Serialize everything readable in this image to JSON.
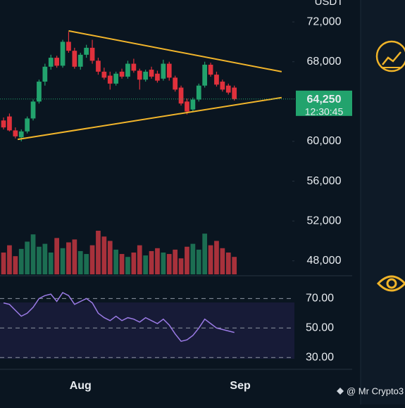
{
  "chart_data": {
    "type": "candlestick",
    "unit": "USDT",
    "colors": {
      "up": "#22a36d",
      "down": "#e0313c",
      "up_volume": "#1c6e52",
      "down_volume": "#a8313b",
      "trendline": "#f2b52b",
      "rsi": "#9b7be6"
    },
    "xlim": [
      -0.6,
      48.8
    ],
    "xticks": [
      {
        "value": 13,
        "label": "Aug"
      },
      {
        "value": 40,
        "label": "Sep"
      }
    ],
    "ylim": [
      46500,
      74200
    ],
    "yticks": [
      {
        "value": 72000,
        "label": "72,000"
      },
      {
        "value": 68000,
        "label": "68,000"
      },
      {
        "value": 60000,
        "label": "60,000"
      },
      {
        "value": 56000,
        "label": "56,000"
      },
      {
        "value": 52000,
        "label": "52,000"
      },
      {
        "value": 48000,
        "label": "48,000"
      }
    ],
    "last_price": {
      "value": 64250,
      "label": "64,250",
      "countdown": "12:30:45"
    },
    "ohlc": [
      [
        62100,
        62400,
        61200,
        61400
      ],
      [
        62500,
        62800,
        61000,
        61100
      ],
      [
        61100,
        61400,
        60300,
        60500
      ],
      [
        60400,
        61200,
        60000,
        61000
      ],
      [
        61000,
        62500,
        60800,
        62300
      ],
      [
        62300,
        64200,
        62100,
        64000
      ],
      [
        64000,
        66200,
        63800,
        66000
      ],
      [
        66000,
        67800,
        65600,
        67500
      ],
      [
        67500,
        68700,
        67200,
        68400
      ],
      [
        68400,
        68600,
        67400,
        67600
      ],
      [
        67600,
        70200,
        67400,
        70000
      ],
      [
        70000,
        71000,
        68900,
        69100
      ],
      [
        69100,
        69400,
        67300,
        67500
      ],
      [
        67500,
        68900,
        67200,
        68700
      ],
      [
        68700,
        69700,
        68400,
        69400
      ],
      [
        69400,
        70200,
        67800,
        68100
      ],
      [
        68100,
        68400,
        66700,
        67000
      ],
      [
        67000,
        67400,
        66200,
        66400
      ],
      [
        66600,
        67000,
        65200,
        65800
      ],
      [
        65800,
        67000,
        65600,
        66800
      ],
      [
        67000,
        67300,
        66300,
        66500
      ],
      [
        66500,
        68100,
        66300,
        67800
      ],
      [
        67800,
        68300,
        66900,
        67100
      ],
      [
        67100,
        67300,
        65200,
        66200
      ],
      [
        66200,
        67200,
        66000,
        67000
      ],
      [
        67200,
        67500,
        66300,
        66500
      ],
      [
        66800,
        67100,
        65900,
        66100
      ],
      [
        66300,
        68200,
        66100,
        67800
      ],
      [
        67800,
        68000,
        66100,
        66400
      ],
      [
        66400,
        66600,
        65000,
        65200
      ],
      [
        65400,
        65600,
        63600,
        63800
      ],
      [
        64000,
        64300,
        62700,
        63000
      ],
      [
        63200,
        64400,
        63000,
        64200
      ],
      [
        64200,
        65800,
        64000,
        65600
      ],
      [
        65600,
        68000,
        65400,
        67700
      ],
      [
        67700,
        67900,
        66500,
        66700
      ],
      [
        66700,
        67000,
        65500,
        65700
      ],
      [
        66000,
        66200,
        65000,
        65200
      ],
      [
        65600,
        65800,
        64700,
        64900
      ],
      [
        65400,
        65600,
        64100,
        64250
      ]
    ],
    "volume": [
      30,
      40,
      25,
      35,
      45,
      55,
      38,
      42,
      30,
      50,
      36,
      44,
      48,
      32,
      28,
      40,
      60,
      52,
      46,
      34,
      28,
      24,
      30,
      40,
      26,
      32,
      36,
      30,
      28,
      34,
      22,
      38,
      42,
      34,
      56,
      40,
      46,
      36,
      30,
      24
    ],
    "trendlines": [
      {
        "start": [
          11,
          71100
        ],
        "end": [
          47,
          67000
        ]
      },
      {
        "start": [
          2.4,
          60200
        ],
        "end": [
          47,
          64400
        ]
      }
    ],
    "rsi": {
      "ylim": [
        22,
        84
      ],
      "yticks": [
        {
          "value": 70,
          "label": "70.00"
        },
        {
          "value": 50,
          "label": "50.00"
        },
        {
          "value": 30,
          "label": "30.00"
        }
      ],
      "values": [
        67,
        66,
        62,
        58,
        60,
        64,
        70,
        72,
        73,
        68,
        74,
        72,
        66,
        68,
        70,
        67,
        60,
        57,
        55,
        58,
        55,
        57,
        56,
        54,
        57,
        55,
        53,
        56,
        52,
        46,
        41,
        42,
        45,
        50,
        56,
        53,
        50,
        49,
        48,
        47
      ]
    }
  },
  "watermark": "@ Mr Crypto3"
}
